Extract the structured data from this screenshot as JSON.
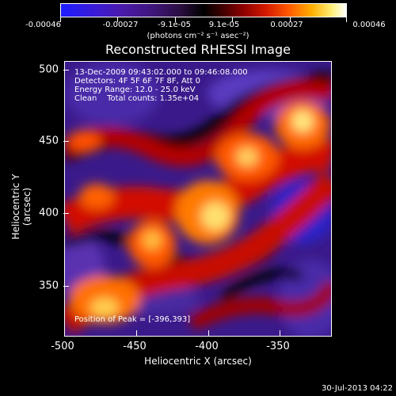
{
  "colorbar": {
    "tick_labels": [
      "-0.00046",
      "-0.00027",
      "-9.1e-05",
      "9.1e-05",
      "0.00027",
      "0.00046"
    ],
    "units": "(photons cm⁻² s⁻¹ asec⁻²)"
  },
  "title": "Reconstructed RHESSI Image",
  "annotations": {
    "line1": "13-Dec-2009 09:43:02.000 to 09:46:08.000",
    "line2": "Detectors: 4F 5F 6F 7F 8F, Att 0",
    "line3": "Energy Range: 12.0 - 25.0 keV",
    "line4": "Clean    Total counts: 1.35e+04",
    "peak": "Position of Peak = [-396,393]"
  },
  "axes": {
    "xlabel": "Heliocentric X (arcsec)",
    "ylabel": "Heliocentric Y (arcsec)",
    "x_ticks": [
      "-500",
      "-450",
      "-400",
      "-350"
    ],
    "y_ticks": [
      "500",
      "450",
      "400",
      "350"
    ]
  },
  "timestamp": "30-Jul-2013 04:22"
}
